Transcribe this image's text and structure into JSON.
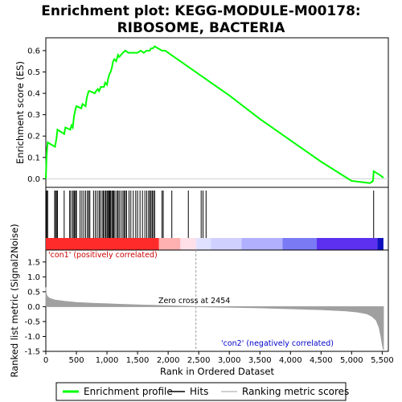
{
  "title_line1": "Enrichment plot: KEGG-MODULE-M00178:",
  "title_line2": "RIBOSOME, BACTERIA",
  "colors": {
    "es_line": "#00ff00",
    "hits": "#000000",
    "metric_fill": "#a0a0a0",
    "pos_label": "#cc0000",
    "neg_label": "#0000cc",
    "zero_line": "#a0a0a0"
  },
  "chart_data": [
    {
      "type": "line",
      "name": "es-panel",
      "ylabel": "Enrichment score (ES)",
      "xlim": [
        0,
        5600
      ],
      "ylim": [
        -0.04,
        0.66
      ],
      "yticks": [
        "0.0",
        "0.1",
        "0.2",
        "0.3",
        "0.4",
        "0.5",
        "0.6"
      ],
      "series": [
        {
          "name": "Enrichment profile",
          "x": [
            0,
            10,
            20,
            30,
            150,
            175,
            190,
            300,
            320,
            400,
            420,
            440,
            460,
            480,
            500,
            580,
            600,
            650,
            670,
            700,
            720,
            800,
            820,
            850,
            870,
            900,
            950,
            970,
            1000,
            1020,
            1040,
            1060,
            1080,
            1100,
            1120,
            1150,
            1180,
            1200,
            1230,
            1260,
            1300,
            1350,
            1400,
            1450,
            1500,
            1550,
            1600,
            1650,
            1700,
            1720,
            1750,
            1780,
            1900,
            1950,
            2000,
            2100,
            2200,
            2300,
            2400,
            2500,
            2600,
            2700,
            3000,
            3500,
            4000,
            4500,
            5000,
            5300,
            5350,
            5360,
            5450,
            5520
          ],
          "y": [
            0.0,
            0.09,
            0.14,
            0.17,
            0.15,
            0.19,
            0.23,
            0.21,
            0.24,
            0.23,
            0.25,
            0.24,
            0.29,
            0.32,
            0.34,
            0.33,
            0.35,
            0.34,
            0.38,
            0.41,
            0.41,
            0.4,
            0.41,
            0.42,
            0.41,
            0.43,
            0.43,
            0.45,
            0.44,
            0.47,
            0.49,
            0.5,
            0.52,
            0.55,
            0.56,
            0.55,
            0.58,
            0.57,
            0.58,
            0.59,
            0.6,
            0.59,
            0.59,
            0.59,
            0.59,
            0.6,
            0.59,
            0.6,
            0.6,
            0.61,
            0.61,
            0.62,
            0.6,
            0.6,
            0.59,
            0.57,
            0.55,
            0.53,
            0.51,
            0.49,
            0.47,
            0.45,
            0.39,
            0.28,
            0.18,
            0.08,
            -0.01,
            -0.02,
            -0.01,
            0.035,
            0.02,
            0.005
          ]
        }
      ]
    },
    {
      "type": "scatter",
      "name": "hits-panel",
      "xlim": [
        0,
        5600
      ],
      "hits": [
        10,
        25,
        30,
        145,
        160,
        180,
        190,
        300,
        390,
        410,
        440,
        460,
        470,
        490,
        500,
        560,
        590,
        620,
        650,
        680,
        700,
        720,
        780,
        810,
        840,
        870,
        890,
        920,
        940,
        960,
        980,
        1000,
        1015,
        1030,
        1045,
        1060,
        1080,
        1095,
        1110,
        1130,
        1160,
        1180,
        1200,
        1230,
        1260,
        1280,
        1300,
        1320,
        1360,
        1390,
        1430,
        1470,
        1500,
        1540,
        1580,
        1620,
        1650,
        1680,
        1700,
        1720,
        1740,
        1760,
        1780,
        1900,
        1920,
        2060,
        2330,
        2540,
        2570,
        2620,
        5360
      ]
    },
    {
      "type": "area",
      "name": "metric-panel",
      "xlabel": "Rank in Ordered Dataset",
      "ylabel": "Ranked list metric (Signal2Noise)",
      "xlim": [
        0,
        5600
      ],
      "ylim": [
        -1.5,
        1.9
      ],
      "xticks": [
        "0",
        "500",
        "1,000",
        "1,500",
        "2,000",
        "2,500",
        "3,000",
        "3,500",
        "4,000",
        "4,500",
        "5,000",
        "5,500"
      ],
      "yticks": [
        "-1.5",
        "-1.0",
        "-0.5",
        "0.0",
        "0.5",
        "1.0",
        "1.5"
      ],
      "series": [
        {
          "name": "Ranking metric scores",
          "x": [
            0,
            5,
            20,
            60,
            150,
            300,
            500,
            800,
            1200,
            1600,
            2000,
            2454,
            3000,
            3500,
            4000,
            4500,
            4900,
            5100,
            5250,
            5330,
            5400,
            5450,
            5480,
            5500,
            5520
          ],
          "y": [
            0.65,
            0.45,
            0.35,
            0.28,
            0.22,
            0.18,
            0.14,
            0.11,
            0.08,
            0.05,
            0.03,
            0.0,
            -0.02,
            -0.04,
            -0.07,
            -0.1,
            -0.14,
            -0.18,
            -0.24,
            -0.32,
            -0.45,
            -0.7,
            -1.0,
            -1.25,
            -1.45
          ]
        }
      ],
      "annotations": [
        "Zero cross at 2454",
        "'con1' (positively correlated)",
        "'con2' (negatively correlated)"
      ]
    }
  ],
  "color_bar": {
    "max_rank": 5520,
    "segments": [
      {
        "end": 1850,
        "color": "#ff2b2b"
      },
      {
        "end": 2200,
        "color": "#ffb0b0"
      },
      {
        "end": 2454,
        "color": "#ffe0e8"
      },
      {
        "end": 2700,
        "color": "#e0e0ff"
      },
      {
        "end": 3200,
        "color": "#d0d0ff"
      },
      {
        "end": 3870,
        "color": "#b0b0ff"
      },
      {
        "end": 4430,
        "color": "#7a7af5"
      },
      {
        "end": 5420,
        "color": "#5c30ee"
      },
      {
        "end": 5520,
        "color": "#1010c0"
      }
    ]
  },
  "legend": [
    {
      "label": "Enrichment profile",
      "kind": "line",
      "color": "#00ff00"
    },
    {
      "label": "Hits",
      "kind": "line",
      "color": "#000000"
    },
    {
      "label": "Ranking metric scores",
      "kind": "line",
      "color": "#c0c0c0"
    }
  ]
}
